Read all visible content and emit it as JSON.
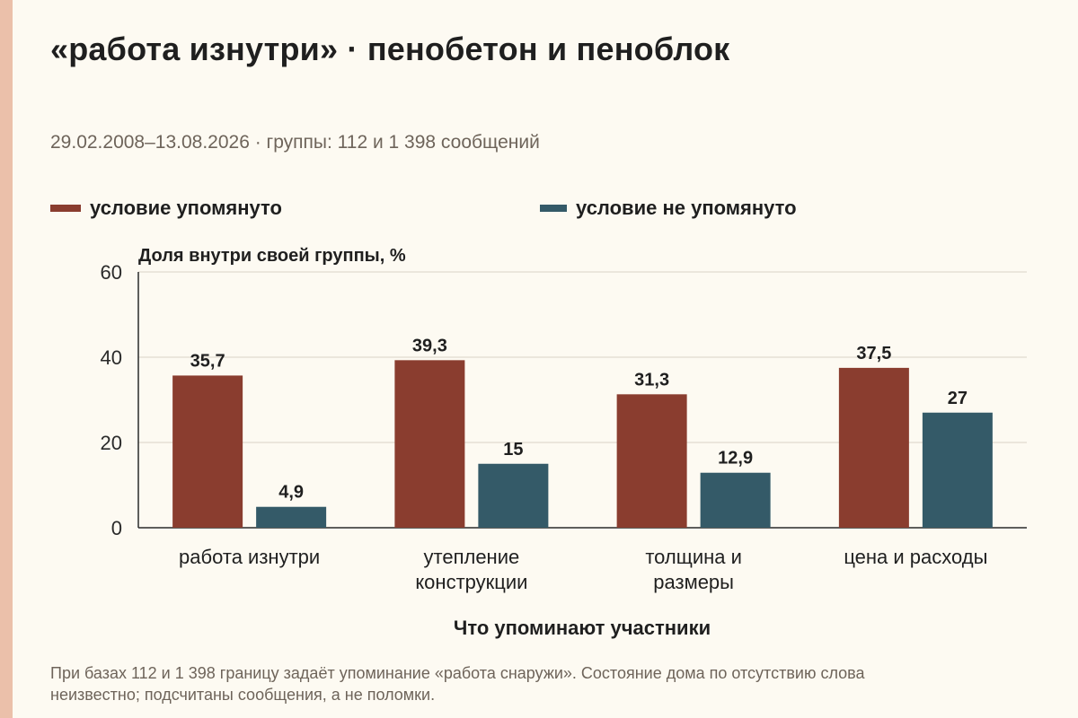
{
  "title": "«работа изнутри» · пенобетон и пеноблок",
  "subtitle": "29.02.2008–13.08.2026 · группы: 112 и 1 398 сообщений",
  "legend": [
    {
      "label": "условие упомянуто",
      "color": "#8a3d2f"
    },
    {
      "label": "условие не упомянуто",
      "color": "#345a68"
    }
  ],
  "footnote": "При базах 112 и 1 398 границу задаёт упоминание «работа снаружи». Состояние дома по отсутствию слова неизвестно; подсчитаны сообщения, а не поломки.",
  "chart_data": {
    "type": "bar",
    "ylabel": "Доля внутри своей группы, %",
    "xlabel": "Что упоминают участники",
    "ylim": [
      0,
      60
    ],
    "yticks": [
      0,
      20,
      40,
      60
    ],
    "grid": true,
    "legend_position": "top",
    "categories": [
      [
        "работа изнутри"
      ],
      [
        "утепление",
        "конструкции"
      ],
      [
        "толщина и",
        "размеры"
      ],
      [
        "цена и расходы"
      ]
    ],
    "series": [
      {
        "name": "условие упомянуто",
        "color": "#8a3d2f",
        "values": [
          35.7,
          39.3,
          31.3,
          37.5
        ],
        "labels": [
          "35,7",
          "39,3",
          "31,3",
          "37,5"
        ]
      },
      {
        "name": "условие не упомянуто",
        "color": "#345a68",
        "values": [
          4.9,
          15,
          12.9,
          27
        ],
        "labels": [
          "4,9",
          "15",
          "12,9",
          "27"
        ]
      }
    ]
  }
}
